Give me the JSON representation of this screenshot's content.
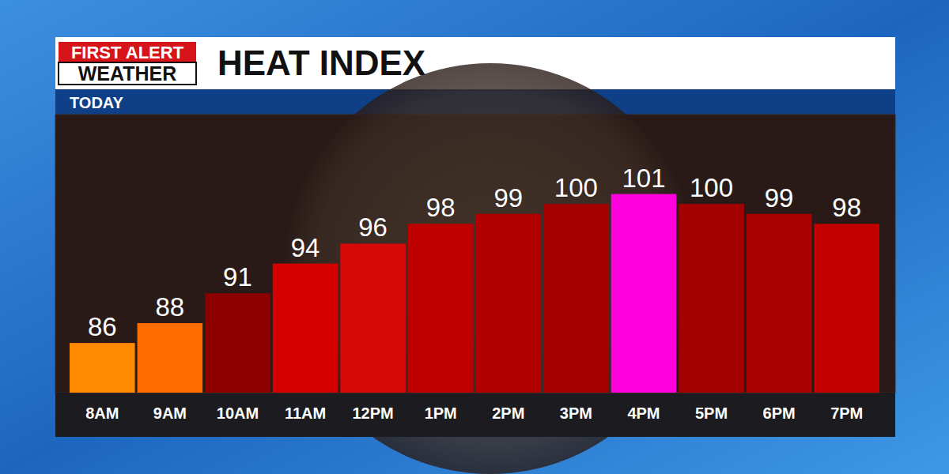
{
  "chart_data": {
    "type": "bar",
    "title": "HEAT INDEX",
    "subtitle": "TODAY",
    "annotations": [
      "FIRST ALERT",
      "WEATHER"
    ],
    "categories": [
      "8AM",
      "9AM",
      "10AM",
      "11AM",
      "12PM",
      "1PM",
      "2PM",
      "3PM",
      "4PM",
      "5PM",
      "6PM",
      "7PM"
    ],
    "values": [
      86,
      88,
      91,
      94,
      96,
      98,
      99,
      100,
      101,
      100,
      99,
      98
    ],
    "colors": [
      "#ff8a00",
      "#ff6c00",
      "#8e0000",
      "#d40000",
      "#d80808",
      "#bf0000",
      "#b20000",
      "#a50000",
      "#ff00dc",
      "#a30000",
      "#aa0000",
      "#c20000"
    ],
    "ylim": [
      81,
      109
    ],
    "data_labels": true,
    "tick_labels": "x",
    "grid": false
  }
}
